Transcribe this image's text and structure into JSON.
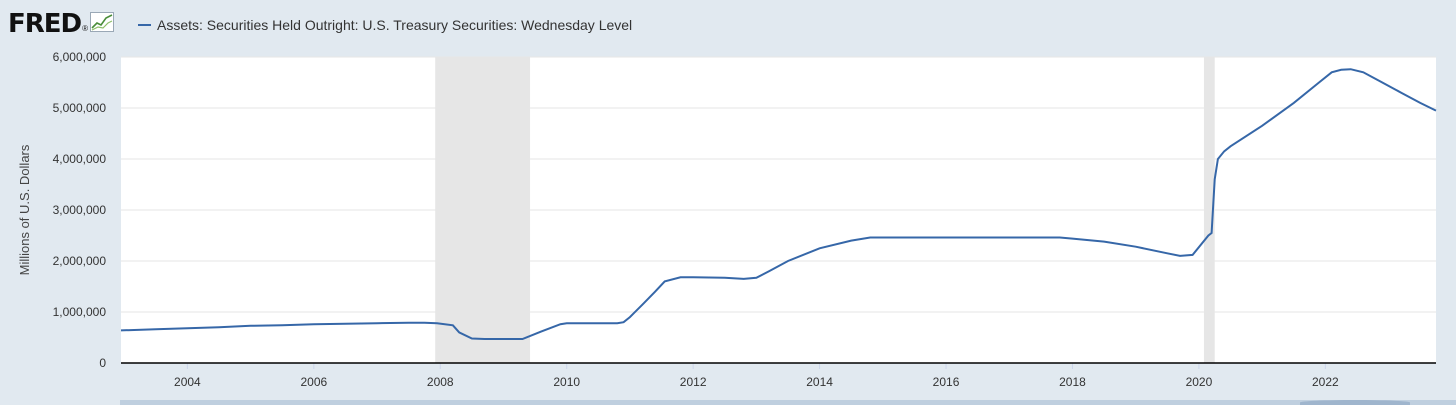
{
  "logo": {
    "text": "FRED",
    "reg": "®",
    "icon": "fred-chart-icon"
  },
  "legend": {
    "label": "Assets: Securities Held Outright: U.S. Treasury Securities: Wednesday Level",
    "color": "#3667a8"
  },
  "colors": {
    "line": "#3667a8",
    "recession": "#e6e6e6",
    "plot_bg": "#ffffff",
    "page_bg": "#e1e9f0",
    "grid": "#e6e6e6",
    "axis": "#000000"
  },
  "chart_data": {
    "type": "line",
    "title": "",
    "xlabel": "",
    "ylabel": "Millions of U.S. Dollars",
    "xlim": [
      2002.95,
      2023.75
    ],
    "ylim": [
      0,
      6000000
    ],
    "y_ticks": [
      0,
      1000000,
      2000000,
      3000000,
      4000000,
      5000000,
      6000000
    ],
    "y_tick_labels": [
      "0",
      "1,000,000",
      "2,000,000",
      "3,000,000",
      "4,000,000",
      "5,000,000",
      "6,000,000"
    ],
    "x_ticks": [
      2004,
      2006,
      2008,
      2010,
      2012,
      2014,
      2016,
      2018,
      2020,
      2022
    ],
    "x_tick_labels": [
      "2004",
      "2006",
      "2008",
      "2010",
      "2012",
      "2014",
      "2016",
      "2018",
      "2020",
      "2022"
    ],
    "grid": true,
    "legend_position": "top-left",
    "recessions": [
      [
        2007.92,
        2009.42
      ],
      [
        2020.08,
        2020.25
      ]
    ],
    "series": [
      {
        "name": "Assets: Securities Held Outright: U.S. Treasury Securities: Wednesday Level",
        "x": [
          2002.95,
          2003.5,
          2004,
          2004.5,
          2005,
          2005.5,
          2006,
          2006.5,
          2007,
          2007.5,
          2007.75,
          2007.95,
          2008.2,
          2008.3,
          2008.5,
          2008.7,
          2009,
          2009.3,
          2009.6,
          2009.9,
          2010,
          2010.5,
          2010.8,
          2010.9,
          2011,
          2011.2,
          2011.4,
          2011.55,
          2011.8,
          2012,
          2012.5,
          2012.8,
          2013,
          2013.2,
          2013.5,
          2014,
          2014.5,
          2014.8,
          2015,
          2015.5,
          2016,
          2016.5,
          2017,
          2017.5,
          2017.8,
          2018,
          2018.5,
          2019,
          2019.5,
          2019.7,
          2019.9,
          2020.15,
          2020.2,
          2020.25,
          2020.3,
          2020.4,
          2020.5,
          2021,
          2021.5,
          2021.9,
          2022.1,
          2022.25,
          2022.4,
          2022.6,
          2022.9,
          2023.2,
          2023.5,
          2023.75
        ],
        "values": [
          640000,
          660000,
          680000,
          700000,
          730000,
          740000,
          760000,
          770000,
          780000,
          790000,
          790000,
          780000,
          740000,
          600000,
          480000,
          470000,
          470000,
          470000,
          620000,
          760000,
          780000,
          780000,
          780000,
          800000,
          900000,
          1150000,
          1400000,
          1600000,
          1680000,
          1680000,
          1670000,
          1650000,
          1670000,
          1800000,
          2000000,
          2250000,
          2400000,
          2460000,
          2460000,
          2460000,
          2460000,
          2460000,
          2460000,
          2460000,
          2460000,
          2440000,
          2380000,
          2280000,
          2150000,
          2100000,
          2120000,
          2500000,
          2550000,
          3600000,
          4000000,
          4150000,
          4250000,
          4650000,
          5100000,
          5500000,
          5700000,
          5750000,
          5760000,
          5700000,
          5500000,
          5300000,
          5100000,
          4950000
        ]
      }
    ]
  }
}
